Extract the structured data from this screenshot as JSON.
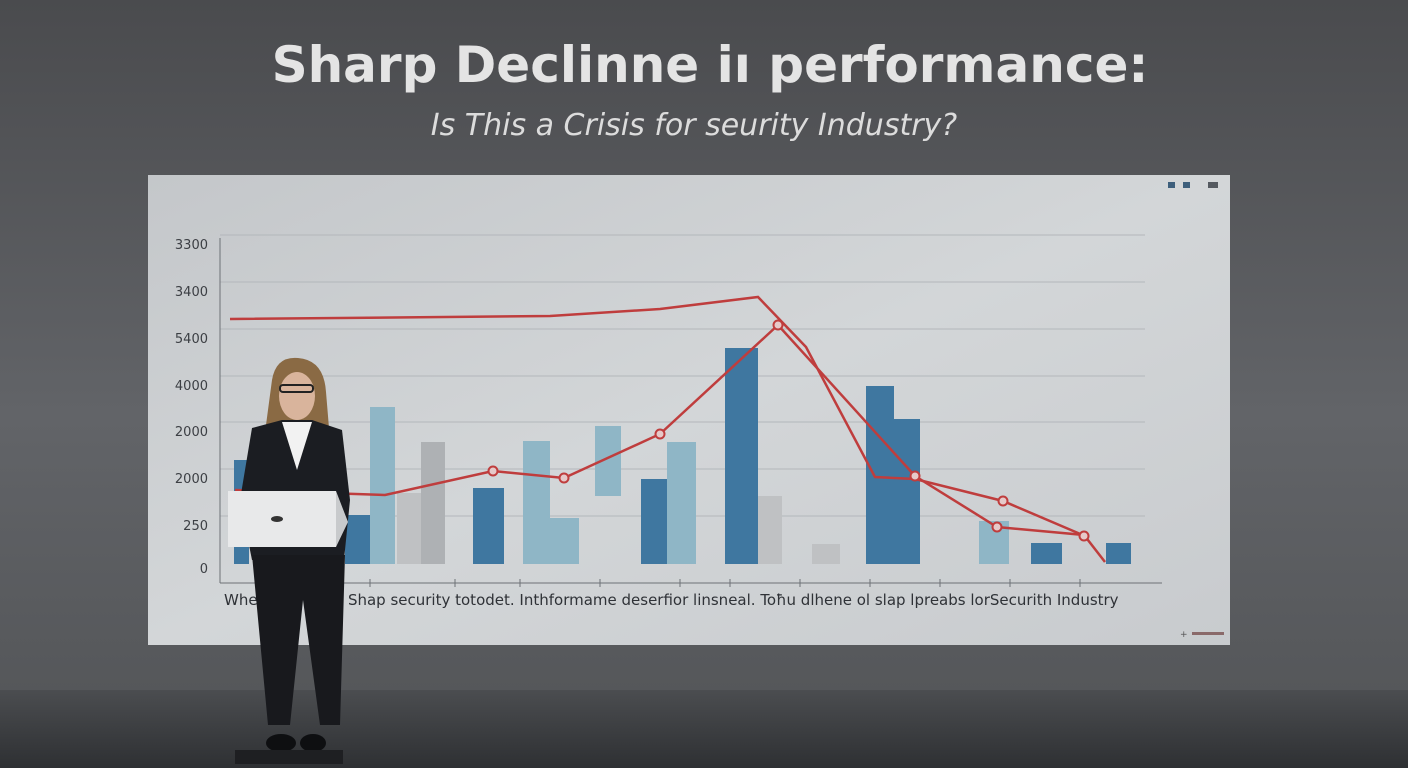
{
  "header": {
    "title": "Sharp Declinne iı performance:",
    "subtitle": "Is This a Crisis for seurity Industry?"
  },
  "screen": {
    "y_labels": [
      3300,
      3400,
      5400,
      4000,
      2000,
      2000,
      250,
      0
    ],
    "caption": [
      "Whee",
      "a Shap security totodet. Inthformame deserfior linsneal. Toħu dlhene ol slap lpreabs lorSecurith Industry"
    ]
  }
}
